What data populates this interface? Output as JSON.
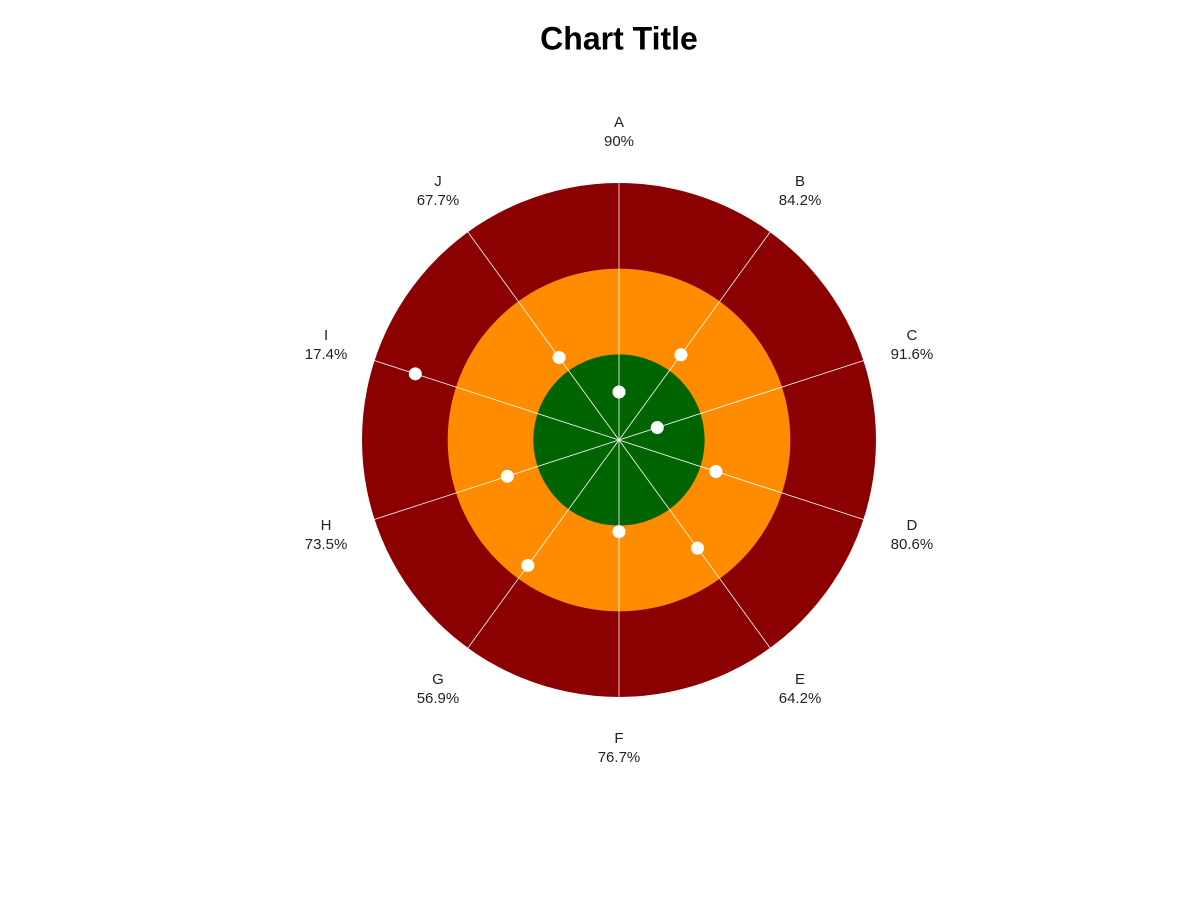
{
  "chart_data": {
    "type": "radial-bullet",
    "title": "Chart Title",
    "categories": [
      "A",
      "B",
      "C",
      "D",
      "E",
      "F",
      "G",
      "H",
      "I",
      "J"
    ],
    "labels": [
      "90%",
      "84.2%",
      "91.6%",
      "80.6%",
      "64.2%",
      "76.7%",
      "56.9%",
      "73.5%",
      "17.4%",
      "67.7%"
    ],
    "values": [
      0.56,
      1.23,
      0.47,
      1.19,
      1.56,
      1.07,
      1.81,
      1.37,
      2.5,
      1.19
    ],
    "ylim": [
      0,
      3
    ],
    "bands": [
      {
        "from": 2,
        "to": 3,
        "color": "#8b0000"
      },
      {
        "from": 1,
        "to": 2,
        "color": "#ff8c00"
      },
      {
        "from": 0,
        "to": 1,
        "color": "#006400"
      }
    ],
    "point_color": "#ffffff",
    "spoke_color": "#ffffff"
  }
}
